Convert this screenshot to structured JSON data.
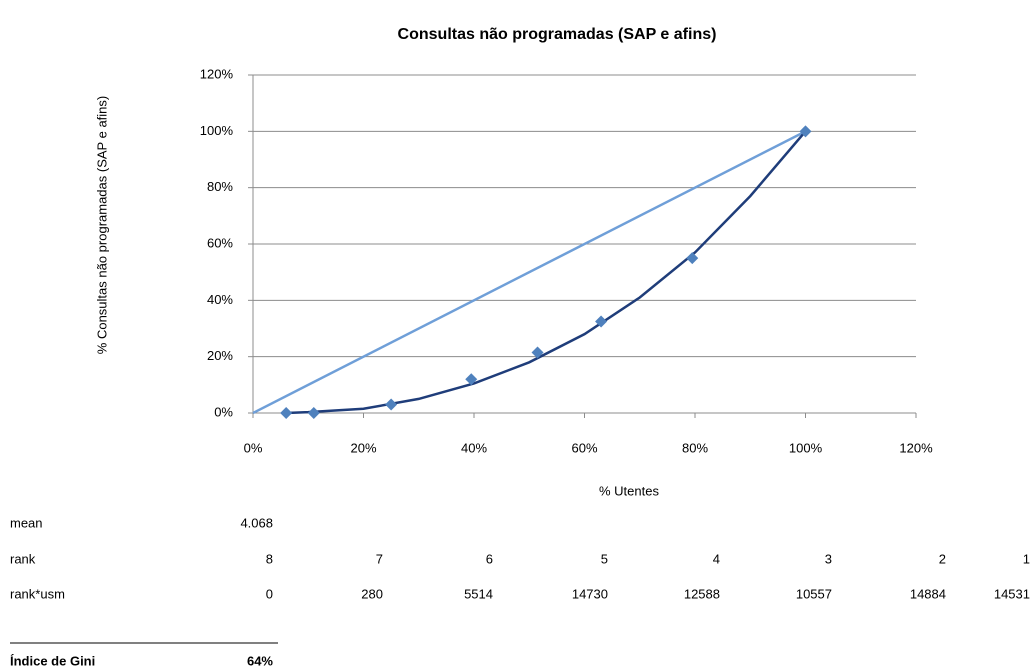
{
  "chart_data": {
    "type": "scatter",
    "title": "Consultas não programadas (SAP e afins)",
    "xlabel": "% Utentes",
    "ylabel": "% Consultas não programadas (SAP e afins)",
    "series": [
      {
        "color": "#4f81bd",
        "x": [
          6,
          11,
          25,
          39.5,
          51.5,
          63,
          79.5,
          100
        ],
        "values": [
          0,
          0,
          3,
          12,
          21.5,
          32.5,
          55,
          100
        ]
      }
    ],
    "reference_line": {
      "color": "#6f9fd8",
      "x": [
        0,
        100
      ],
      "values": [
        0,
        100
      ]
    },
    "trendline": {
      "color": "#1f3d7a",
      "x": [
        6,
        10,
        20,
        30,
        40,
        50,
        60,
        70,
        80,
        90,
        100
      ],
      "values": [
        0,
        0.3,
        1.5,
        5,
        10.5,
        18,
        28,
        41,
        57,
        77,
        100
      ]
    },
    "xlim": [
      0,
      120
    ],
    "ylim": [
      0,
      120
    ],
    "xticks": [
      {
        "value": 0,
        "label": "0%"
      },
      {
        "value": 20,
        "label": "20%"
      },
      {
        "value": 40,
        "label": "40%"
      },
      {
        "value": 60,
        "label": "60%"
      },
      {
        "value": 80,
        "label": "80%"
      },
      {
        "value": 100,
        "label": "100%"
      },
      {
        "value": 120,
        "label": "120%"
      }
    ],
    "yticks": [
      {
        "value": 0,
        "label": "0%"
      },
      {
        "value": 20,
        "label": "20%"
      },
      {
        "value": 40,
        "label": "40%"
      },
      {
        "value": 60,
        "label": "60%"
      },
      {
        "value": 80,
        "label": "80%"
      },
      {
        "value": 100,
        "label": "100%"
      },
      {
        "value": 120,
        "label": "120%"
      }
    ],
    "grid": true
  },
  "table": {
    "rows": [
      [
        "mean",
        4.068
      ],
      [
        "rank",
        8,
        7,
        6,
        5,
        4,
        3,
        2,
        1
      ],
      [
        "rank*usm",
        0,
        280,
        5514,
        14730,
        12588,
        10557,
        14884,
        14531
      ]
    ],
    "gini": [
      "Índice de Gini",
      "64%"
    ]
  }
}
